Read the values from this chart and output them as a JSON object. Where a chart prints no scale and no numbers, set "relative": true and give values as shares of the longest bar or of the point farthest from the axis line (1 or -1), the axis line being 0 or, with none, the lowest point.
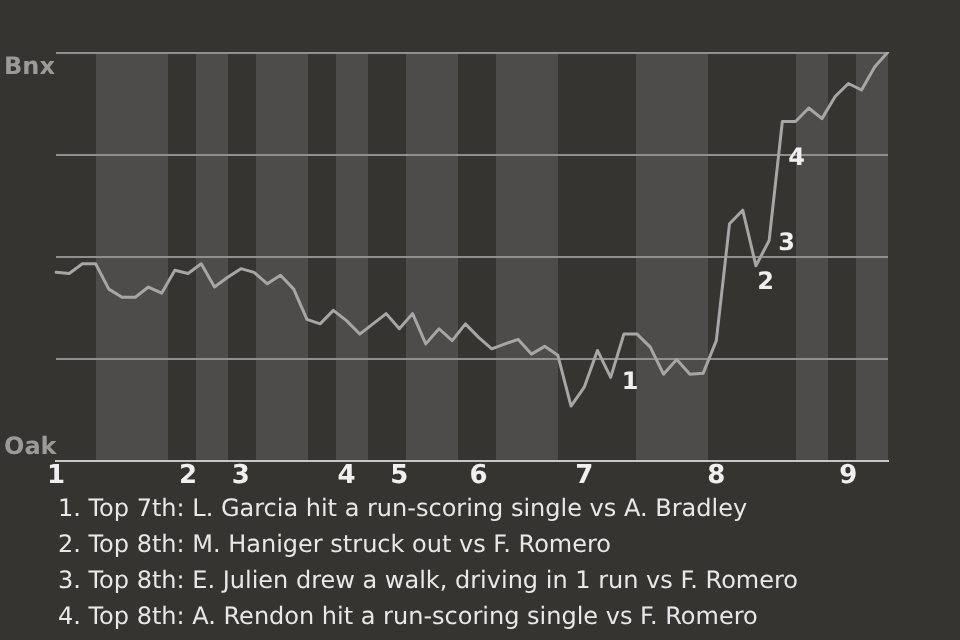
{
  "chart_data": {
    "type": "line",
    "relative": true,
    "categories": [
      "1",
      null,
      null,
      null,
      null,
      null,
      null,
      null,
      null,
      null,
      "2",
      null,
      null,
      null,
      "3",
      null,
      null,
      null,
      null,
      null,
      null,
      null,
      "4",
      null,
      null,
      null,
      "5",
      null,
      null,
      null,
      null,
      null,
      "6",
      null,
      null,
      null,
      null,
      null,
      null,
      null,
      "7",
      null,
      null,
      null,
      null,
      null,
      null,
      null,
      null,
      null,
      "8",
      null,
      null,
      null,
      null,
      null,
      null,
      null,
      null,
      null,
      "9",
      null,
      null,
      null
    ],
    "values": [
      0.461,
      0.458,
      0.482,
      0.482,
      0.42,
      0.4,
      0.4,
      0.425,
      0.41,
      0.466,
      0.458,
      0.482,
      0.425,
      0.449,
      0.47,
      0.461,
      0.433,
      0.454,
      0.42,
      0.346,
      0.335,
      0.368,
      0.343,
      0.31,
      0.335,
      0.36,
      0.323,
      0.36,
      0.286,
      0.323,
      0.294,
      0.335,
      0.302,
      0.274,
      0.286,
      0.297,
      0.261,
      0.28,
      0.258,
      0.134,
      0.18,
      0.27,
      0.204,
      0.31,
      0.31,
      0.278,
      0.212,
      0.248,
      0.212,
      0.214,
      0.294,
      0.58,
      0.613,
      0.477,
      0.539,
      0.83,
      0.83,
      0.863,
      0.837,
      0.891,
      0.923,
      0.907,
      0.964,
      1.0
    ],
    "color": "#a6a6a6",
    "marker": "none",
    "line_style": "solid",
    "ref_lines": [
      {
        "axis": "y",
        "value": 0.25,
        "color": "#8f8f8f"
      },
      {
        "axis": "y",
        "value": 0.5,
        "color": "#8f8f8f"
      },
      {
        "axis": "y",
        "value": 0.75,
        "color": "#8f8f8f"
      },
      {
        "axis": "y",
        "value": 1,
        "color": "#8f8f8f"
      }
    ],
    "annotations": [
      "Bnx",
      "Oak",
      "1",
      "2",
      "3",
      "4",
      "1. Top 7th: L. Garcia hit a run-scoring single vs A. Bradley",
      "2. Top 8th: M. Haniger struck out vs F. Romero",
      "3. Top 8th: E. Julien drew a walk, driving in 1 run vs F. Romero",
      "4. Top 8th: A. Rendon hit a run-scoring single vs F. Romero"
    ]
  }
}
